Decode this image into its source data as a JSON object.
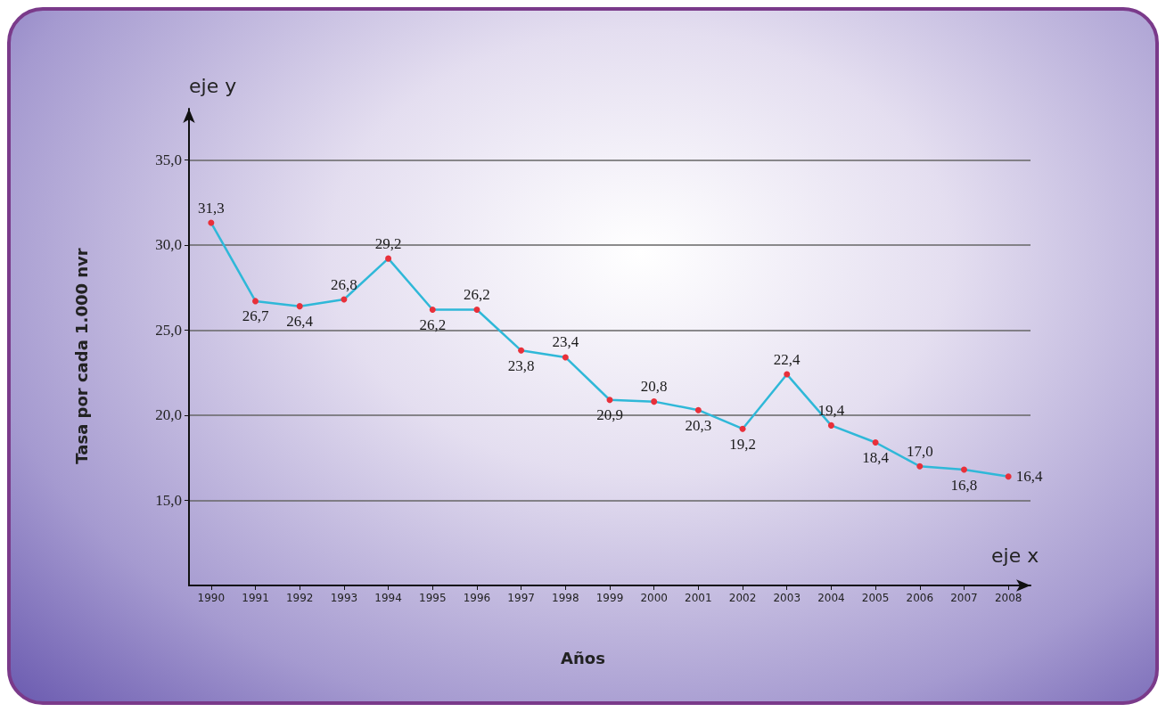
{
  "chart_data": {
    "type": "line",
    "xlabel": "Años",
    "ylabel": "Tasa por cada 1.000 nvr",
    "annotations": [
      "eje y",
      "eje x"
    ],
    "categories": [
      "1990",
      "1991",
      "1992",
      "1993",
      "1994",
      "1995",
      "1996",
      "1997",
      "1998",
      "1999",
      "2000",
      "2001",
      "2002",
      "2003",
      "2004",
      "2005",
      "2006",
      "2007",
      "2008"
    ],
    "series": [
      {
        "color": "#2fb8d8",
        "values": [
          31.3,
          26.7,
          26.4,
          26.8,
          29.2,
          26.2,
          26.2,
          23.8,
          23.4,
          20.9,
          20.8,
          20.3,
          19.2,
          22.4,
          19.4,
          18.4,
          17.0,
          16.8,
          16.4
        ],
        "value_labels": [
          "31,3",
          "26,7",
          "26,4",
          "26,8",
          "29,2",
          "26,2",
          "26,2",
          "23,8",
          "23,4",
          "20,9",
          "20,8",
          "20,3",
          "19,2",
          "22,4",
          "19,4",
          "18,4",
          "17,0",
          "16,8",
          "16,4"
        ]
      }
    ],
    "ylim": [
      10,
      38
    ],
    "yticks": [
      {
        "value": 15,
        "label": "15,0"
      },
      {
        "value": 20,
        "label": "20,0"
      },
      {
        "value": 25,
        "label": "25,0"
      },
      {
        "value": 30,
        "label": "30,0"
      },
      {
        "value": 35,
        "label": "35,0"
      }
    ],
    "grid": "y",
    "marker": "circle",
    "line_style": "solid"
  }
}
